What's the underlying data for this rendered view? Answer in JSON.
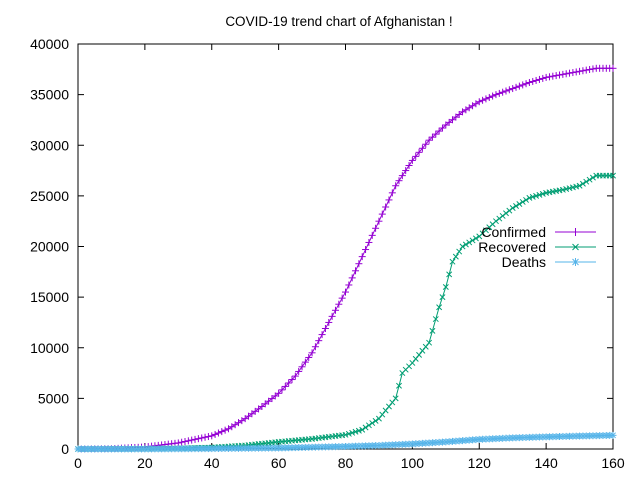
{
  "chart_data": {
    "type": "line",
    "title": "COVID-19 trend chart of Afghanistan !",
    "xlabel": "",
    "ylabel": "",
    "xlim": [
      0,
      160
    ],
    "ylim": [
      0,
      40000
    ],
    "xticks": [
      0,
      20,
      40,
      60,
      80,
      100,
      120,
      140,
      160
    ],
    "yticks": [
      0,
      5000,
      10000,
      15000,
      20000,
      25000,
      30000,
      35000,
      40000
    ],
    "grid": false,
    "legend_position": "right",
    "series": [
      {
        "name": "Confirmed",
        "color": "#9400d3",
        "marker": "plus",
        "points": [
          [
            0,
            0
          ],
          [
            10,
            30
          ],
          [
            20,
            200
          ],
          [
            30,
            600
          ],
          [
            40,
            1300
          ],
          [
            45,
            2000
          ],
          [
            50,
            3000
          ],
          [
            55,
            4200
          ],
          [
            60,
            5500
          ],
          [
            65,
            7200
          ],
          [
            70,
            9500
          ],
          [
            75,
            12500
          ],
          [
            80,
            15500
          ],
          [
            85,
            19000
          ],
          [
            90,
            22500
          ],
          [
            95,
            26000
          ],
          [
            100,
            28500
          ],
          [
            105,
            30500
          ],
          [
            110,
            32000
          ],
          [
            115,
            33300
          ],
          [
            120,
            34300
          ],
          [
            125,
            35000
          ],
          [
            130,
            35600
          ],
          [
            135,
            36200
          ],
          [
            140,
            36700
          ],
          [
            145,
            37000
          ],
          [
            150,
            37300
          ],
          [
            155,
            37600
          ],
          [
            160,
            37600
          ]
        ]
      },
      {
        "name": "Recovered",
        "color": "#009e73",
        "marker": "cross",
        "points": [
          [
            0,
            0
          ],
          [
            20,
            20
          ],
          [
            30,
            50
          ],
          [
            40,
            150
          ],
          [
            50,
            350
          ],
          [
            60,
            700
          ],
          [
            70,
            1000
          ],
          [
            80,
            1400
          ],
          [
            85,
            1900
          ],
          [
            90,
            3000
          ],
          [
            95,
            5000
          ],
          [
            97,
            7500
          ],
          [
            100,
            8500
          ],
          [
            105,
            10500
          ],
          [
            108,
            14000
          ],
          [
            110,
            16000
          ],
          [
            112,
            18500
          ],
          [
            115,
            20000
          ],
          [
            120,
            21000
          ],
          [
            125,
            22500
          ],
          [
            130,
            23800
          ],
          [
            135,
            24800
          ],
          [
            140,
            25300
          ],
          [
            145,
            25600
          ],
          [
            150,
            26000
          ],
          [
            155,
            27000
          ],
          [
            160,
            27000
          ]
        ]
      },
      {
        "name": "Deaths",
        "color": "#56b4e9",
        "marker": "star",
        "points": [
          [
            0,
            0
          ],
          [
            20,
            5
          ],
          [
            40,
            40
          ],
          [
            60,
            100
          ],
          [
            80,
            250
          ],
          [
            90,
            350
          ],
          [
            100,
            500
          ],
          [
            110,
            700
          ],
          [
            120,
            950
          ],
          [
            130,
            1100
          ],
          [
            140,
            1200
          ],
          [
            150,
            1280
          ],
          [
            160,
            1350
          ]
        ]
      }
    ]
  }
}
